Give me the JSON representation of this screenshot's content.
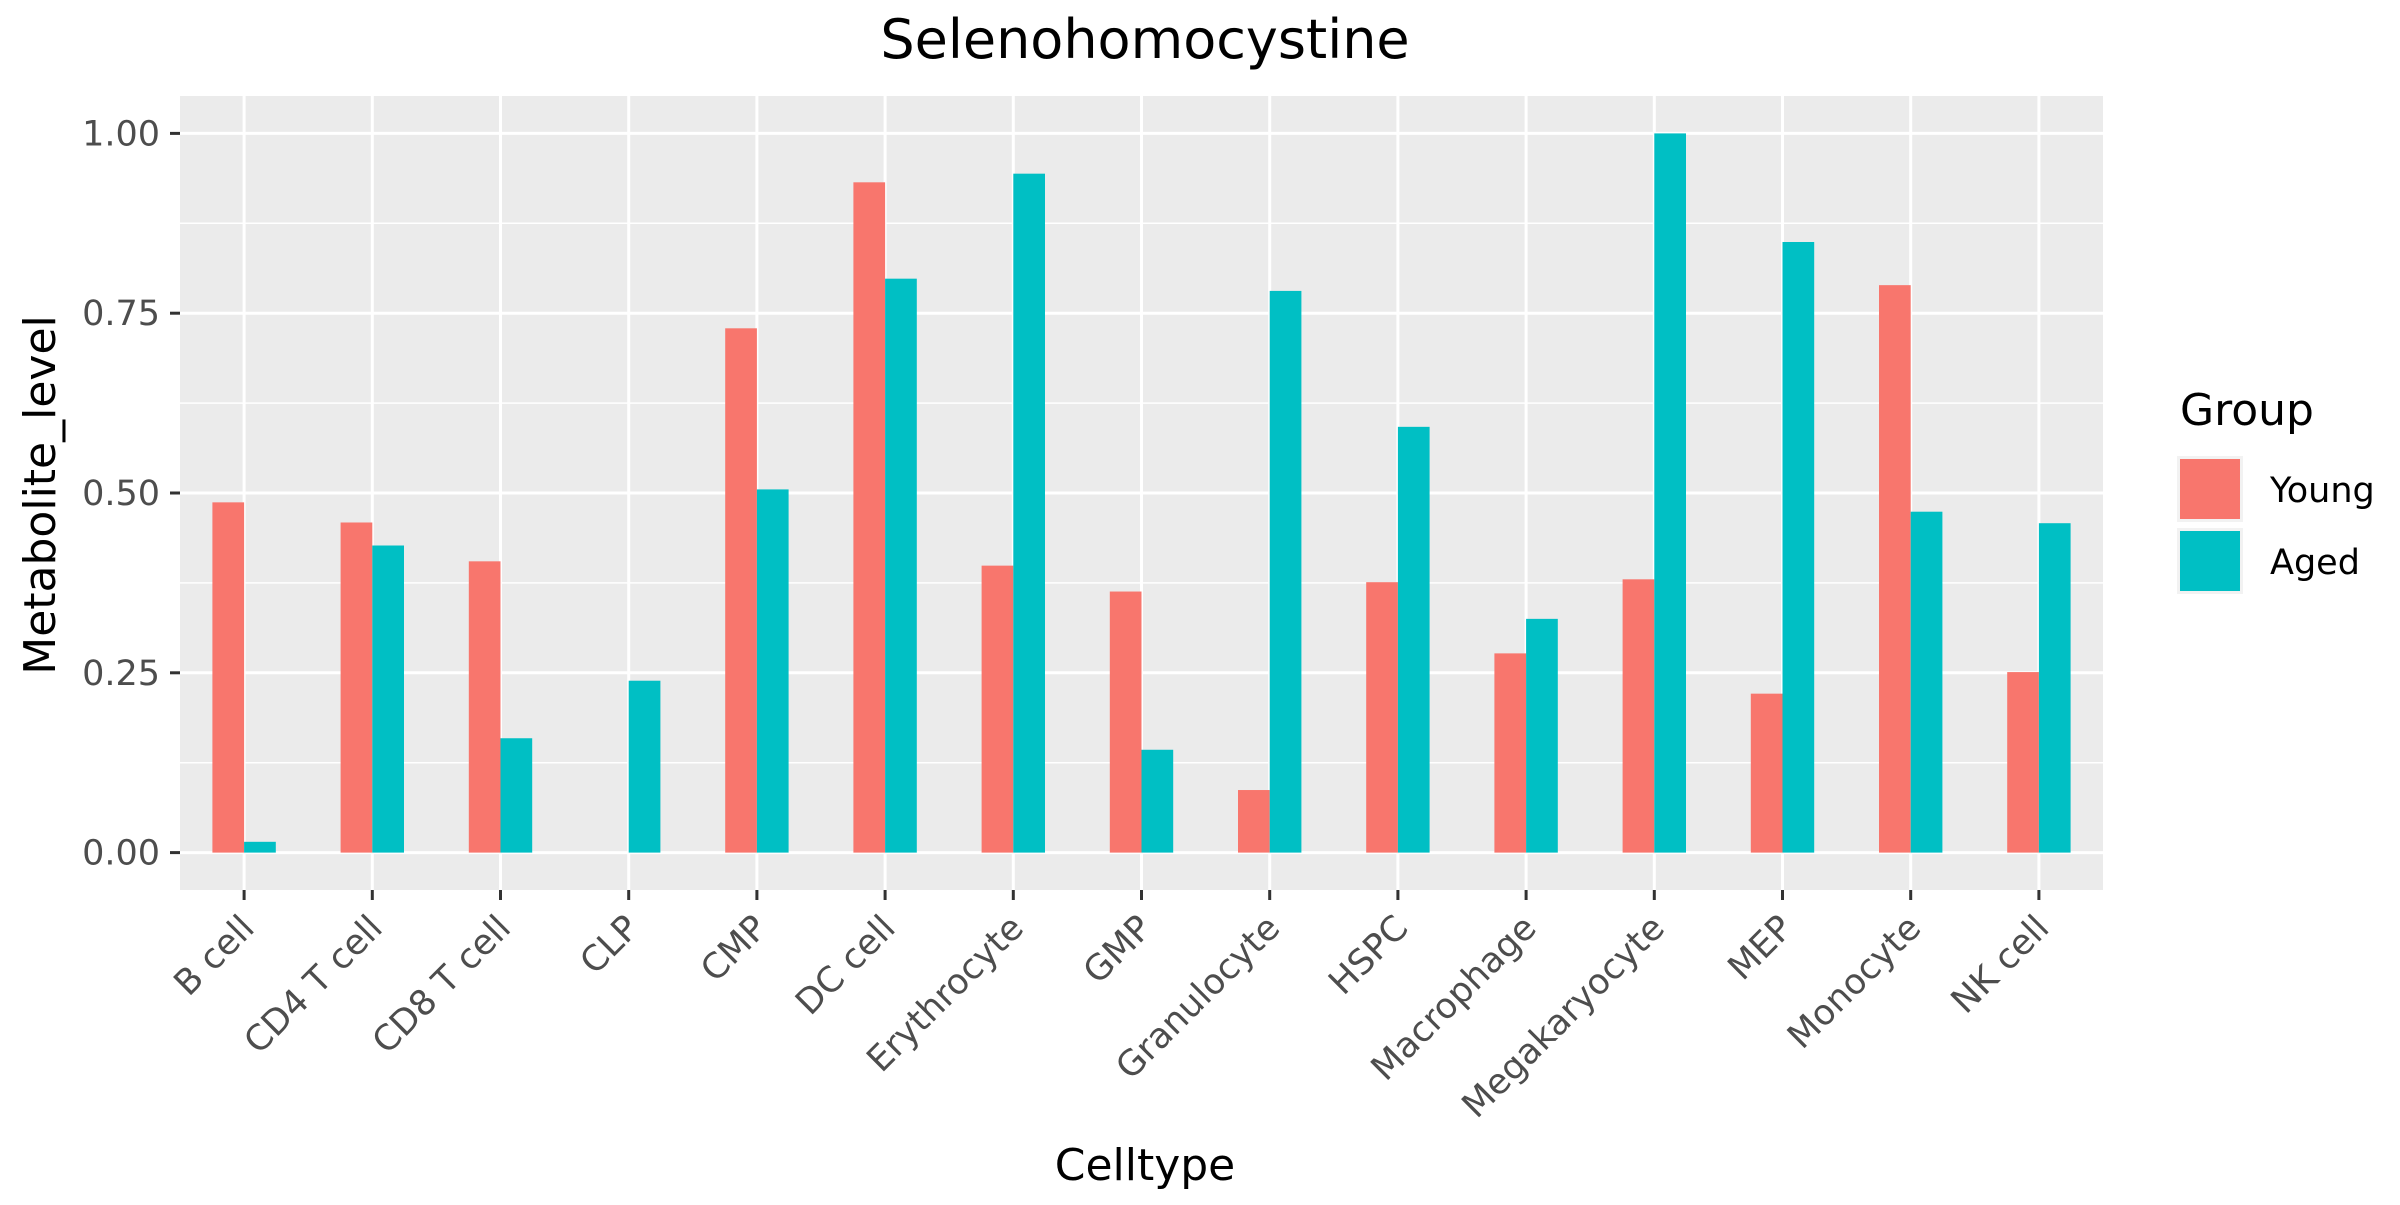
{
  "chart_data": {
    "type": "bar",
    "title": "Selenohomocystine",
    "xlabel": "Celltype",
    "ylabel": "Metabolite_level",
    "categories": [
      "B cell",
      "CD4 T cell",
      "CD8 T cell",
      "CLP",
      "CMP",
      "DC cell",
      "Erythrocyte",
      "GMP",
      "Granulocyte",
      "HSPC",
      "Macrophage",
      "Megakaryocyte",
      "MEP",
      "Monocyte",
      "NK cell"
    ],
    "series": [
      {
        "name": "Young",
        "color": "#F8766D",
        "values": [
          0.487,
          0.459,
          0.405,
          null,
          0.729,
          0.932,
          0.399,
          0.363,
          0.087,
          0.376,
          0.277,
          0.38,
          0.221,
          0.789,
          0.251
        ]
      },
      {
        "name": "Aged",
        "color": "#00BFC4",
        "values": [
          0.015,
          0.427,
          0.159,
          0.239,
          0.505,
          0.798,
          0.944,
          0.143,
          0.781,
          0.592,
          0.325,
          1.0,
          0.849,
          0.474,
          0.458
        ]
      }
    ],
    "ylim": [
      -0.052,
      1.052
    ],
    "yticks": [
      0.0,
      0.25,
      0.5,
      0.75,
      1.0
    ],
    "ytick_labels": [
      "0.00",
      "0.25",
      "0.50",
      "0.75",
      "1.00"
    ],
    "grid": true,
    "panel_background": "#EBEBEB",
    "legend": {
      "title": "Group",
      "position": "right"
    }
  }
}
